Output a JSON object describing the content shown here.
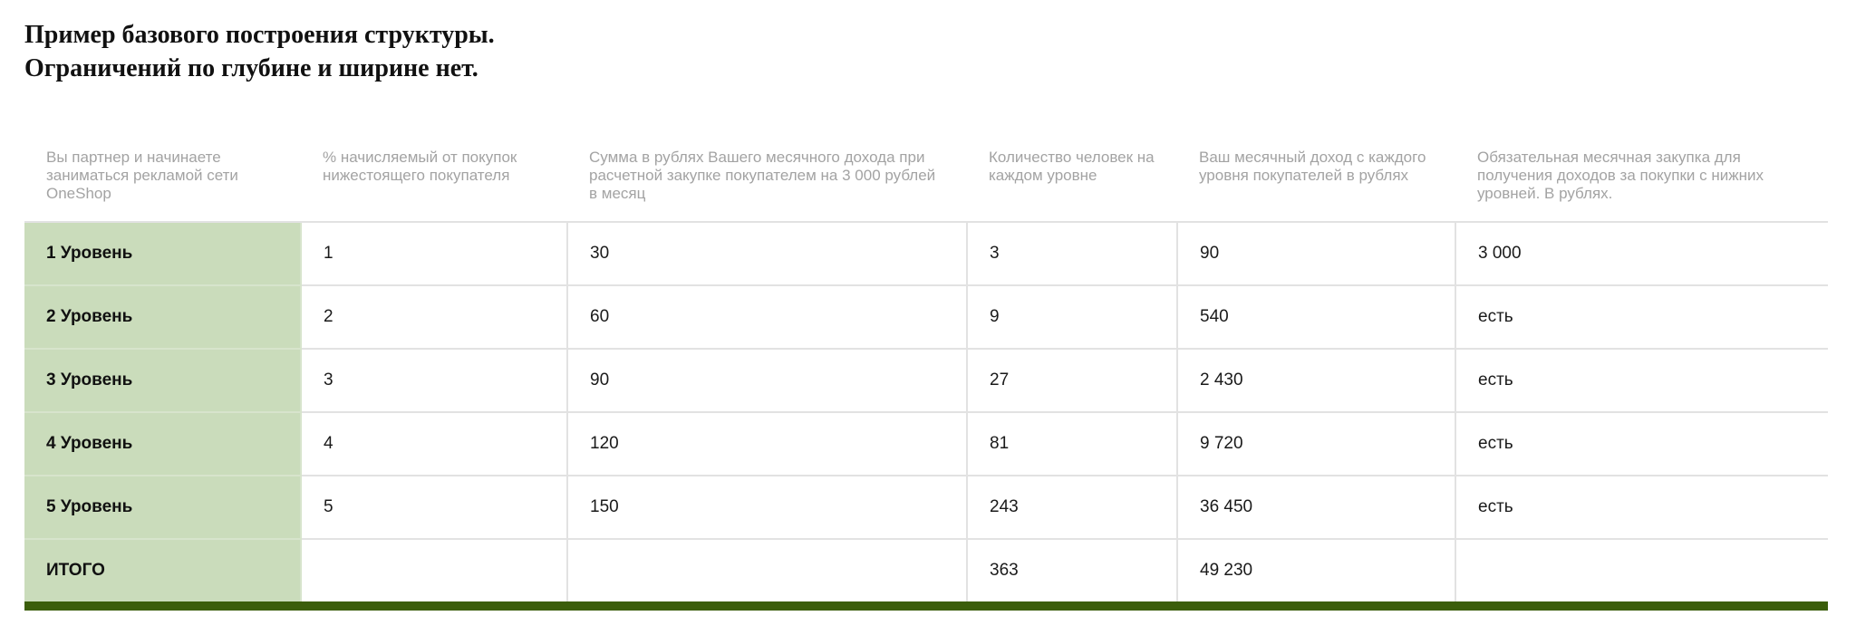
{
  "title": {
    "line1": "Пример базового построения структуры.",
    "line2": "Ограничений по глубине и ширине нет."
  },
  "table": {
    "headers": [
      "Вы партнер и начинаете заниматься рекламой сети OneShop",
      "% начисляемый от покупок нижестоящего покупателя",
      "Сумма в рублях Вашего месячного дохода при расчетной закупке покупателем на 3 000 рублей в месяц",
      "Количество человек на каждом уровне",
      "Ваш месячный доход с каждого уровня покупателей в рублях",
      "Обязательная месячная закупка для получения доходов за покупки с нижних уровней. В рублях."
    ],
    "rows": [
      [
        "1 Уровень",
        "1",
        "30",
        "3",
        "90",
        "3 000"
      ],
      [
        "2 Уровень",
        "2",
        "60",
        "9",
        "540",
        "есть"
      ],
      [
        "3 Уровень",
        "3",
        "90",
        "27",
        "2 430",
        "есть"
      ],
      [
        "4 Уровень",
        "4",
        "120",
        "81",
        "9 720",
        "есть"
      ],
      [
        "5 Уровень",
        "5",
        "150",
        "243",
        "36 450",
        "есть"
      ],
      [
        "ИТОГО",
        "",
        "",
        "363",
        "49 230",
        ""
      ]
    ]
  },
  "colors": {
    "level_column": "#cadcbb",
    "bottom_bar": "#3b5e0b",
    "header_text": "#a3a3a3"
  }
}
